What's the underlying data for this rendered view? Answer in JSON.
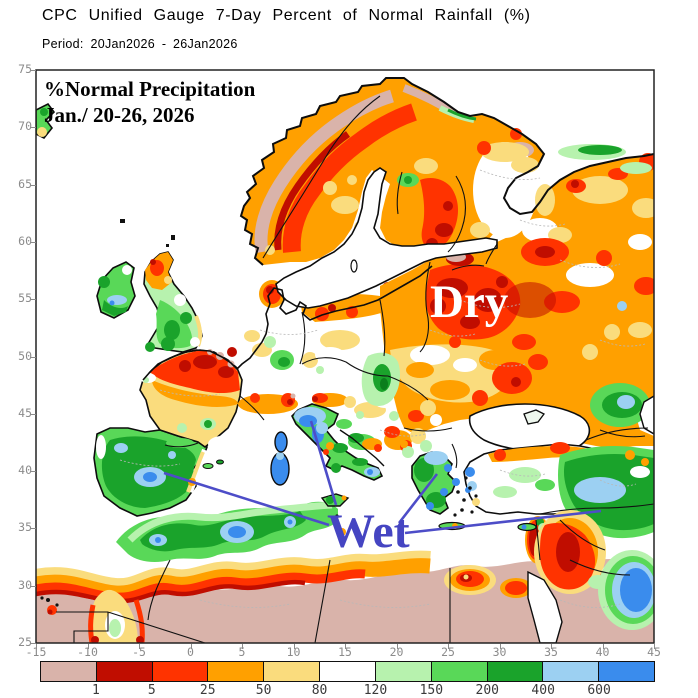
{
  "header": {
    "title": "CPC Unified Gauge 7-Day Percent of Normal Rainfall (%)",
    "period": "Period: 20Jan2026 - 26Jan2026"
  },
  "map": {
    "heading": "%Normal Precipitation",
    "dates": "Jan./ 20-26, 2026",
    "annotations": {
      "dry": "Dry",
      "wet": "Wet"
    },
    "lat_ticks": [
      75,
      70,
      65,
      60,
      55,
      50,
      45,
      40,
      35,
      30,
      25
    ],
    "lon_ticks": [
      -15,
      -10,
      -5,
      0,
      5,
      10,
      15,
      20,
      25,
      30,
      35,
      40,
      45
    ]
  },
  "colorbar": {
    "labels": [
      "1",
      "5",
      "25",
      "50",
      "80",
      "120",
      "150",
      "200",
      "400",
      "600"
    ],
    "colors": [
      "#d9b3aa",
      "#c00d00",
      "#ff3300",
      "#ffa000",
      "#fadc7d",
      "#ffffff",
      "#b7f2ae",
      "#59d858",
      "#1aa32b",
      "#9cd0f2",
      "#3a8ced"
    ],
    "units": "percent of normal rainfall"
  },
  "palette": {
    "annotation_blue": "#4545c2",
    "annotation_white": "#ffffff",
    "axis_gray": "#8b8b8b"
  }
}
